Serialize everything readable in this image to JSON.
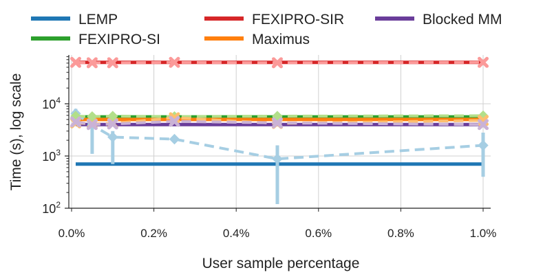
{
  "chart_data": {
    "type": "line",
    "xlabel": "User sample percentage",
    "ylabel": "Time (s), log scale",
    "yscale": "log",
    "xlim": [
      0.0,
      1.02
    ],
    "ylim": [
      90,
      90000
    ],
    "grid": true,
    "legend_position": "top, above plot, 3 columns",
    "x_ticks": [
      0.0,
      0.2,
      0.4,
      0.6,
      0.8,
      1.0
    ],
    "x_tick_labels": [
      "0.0%",
      "0.2%",
      "0.4%",
      "0.6%",
      "0.8%",
      "1.0%"
    ],
    "y_ticks": [
      {
        "value": 100,
        "base": "10",
        "exp": "2"
      },
      {
        "value": 1000,
        "base": "10",
        "exp": "3"
      },
      {
        "value": 10000,
        "base": "10",
        "exp": "4"
      }
    ],
    "series": [
      {
        "name": "LEMP",
        "color": "#1f77b4",
        "kind": "actual",
        "values": [
          [
            0.01,
            700
          ],
          [
            1.0,
            700
          ]
        ]
      },
      {
        "name": "FEXIPRO-SI",
        "color": "#2ca02c",
        "kind": "actual",
        "values": [
          [
            0.01,
            5600
          ],
          [
            1.0,
            5600
          ]
        ]
      },
      {
        "name": "FEXIPRO-SIR",
        "color": "#d62728",
        "kind": "actual",
        "values": [
          [
            0.01,
            62000
          ],
          [
            1.0,
            62000
          ]
        ]
      },
      {
        "name": "Maximus",
        "color": "#ff7f0e",
        "kind": "actual",
        "values": [
          [
            0.01,
            5000
          ],
          [
            1.0,
            5000
          ]
        ]
      },
      {
        "name": "Blocked MM",
        "color": "#6a3d9a",
        "kind": "actual",
        "values": [
          [
            0.01,
            4000
          ],
          [
            1.0,
            4000
          ]
        ]
      }
    ],
    "estimates": [
      {
        "name": "LEMP estimate",
        "color": "#a6cee3",
        "marker": "diamond",
        "points": [
          {
            "x": 0.01,
            "y": 6500,
            "lo": 4000,
            "hi": 8000
          },
          {
            "x": 0.05,
            "y": 3900,
            "lo": 1100,
            "hi": 5000
          },
          {
            "x": 0.1,
            "y": 2300,
            "lo": 700,
            "hi": 3000
          },
          {
            "x": 0.25,
            "y": 2100,
            "lo": 1900,
            "hi": 2300
          },
          {
            "x": 0.5,
            "y": 880,
            "lo": 120,
            "hi": 1600
          },
          {
            "x": 1.0,
            "y": 1600,
            "lo": 400,
            "hi": 2800
          }
        ]
      },
      {
        "name": "FEXIPRO-SI estimate",
        "color": "#b2df8a",
        "marker": "diamond",
        "points": [
          {
            "x": 0.01,
            "y": 5800
          },
          {
            "x": 0.05,
            "y": 5700
          },
          {
            "x": 0.1,
            "y": 5800
          },
          {
            "x": 0.25,
            "y": 5700
          },
          {
            "x": 0.5,
            "y": 5800
          },
          {
            "x": 1.0,
            "y": 5900
          }
        ]
      },
      {
        "name": "Maximus estimate",
        "color": "#fdbf6f",
        "marker": "cross",
        "points": [
          {
            "x": 0.01,
            "y": 4300
          },
          {
            "x": 0.05,
            "y": 4100
          },
          {
            "x": 0.1,
            "y": 4200
          },
          {
            "x": 0.25,
            "y": 5400
          },
          {
            "x": 0.5,
            "y": 4200
          },
          {
            "x": 1.0,
            "y": 4800
          }
        ]
      },
      {
        "name": "Blocked MM estimate",
        "color": "#cab2d6",
        "marker": "cross",
        "points": [
          {
            "x": 0.01,
            "y": 4500
          },
          {
            "x": 0.05,
            "y": 4000
          },
          {
            "x": 0.1,
            "y": 4100
          },
          {
            "x": 0.25,
            "y": 4600
          },
          {
            "x": 0.5,
            "y": 4300
          },
          {
            "x": 1.0,
            "y": 4000
          }
        ]
      },
      {
        "name": "FEXIPRO-SIR estimate",
        "color": "#fb9a99",
        "marker": "cross",
        "points": [
          {
            "x": 0.01,
            "y": 62000
          },
          {
            "x": 0.05,
            "y": 61000
          },
          {
            "x": 0.1,
            "y": 61000
          },
          {
            "x": 0.25,
            "y": 62000
          },
          {
            "x": 0.5,
            "y": 61000
          },
          {
            "x": 1.0,
            "y": 62000
          }
        ]
      }
    ]
  }
}
